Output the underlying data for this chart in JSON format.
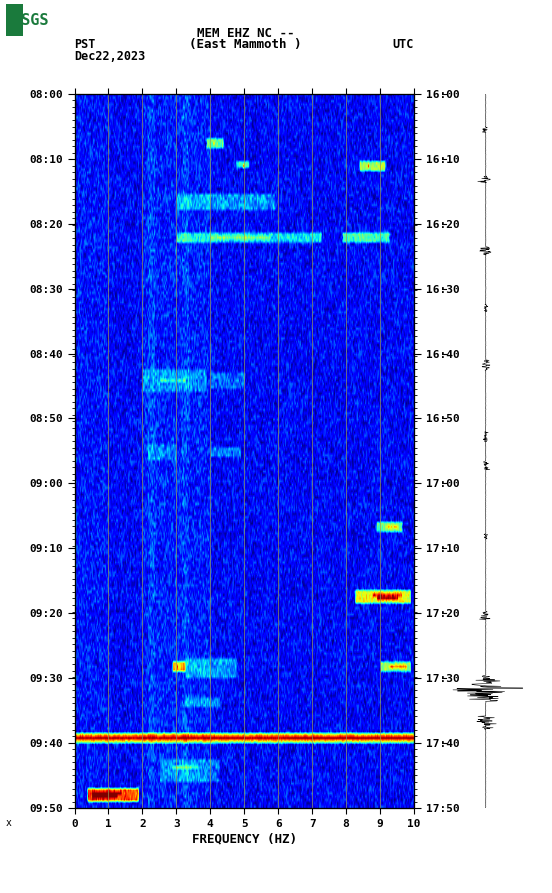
{
  "title_line1": "MEM EHZ NC --",
  "title_line2": "(East Mammoth )",
  "date_label": "Dec22,2023",
  "tz_left": "PST",
  "tz_right": "UTC",
  "freq_min": 0,
  "freq_max": 10,
  "freq_label": "FREQUENCY (HZ)",
  "freq_ticks": [
    0,
    1,
    2,
    3,
    4,
    5,
    6,
    7,
    8,
    9,
    10
  ],
  "time_ticks_left": [
    "08:00",
    "08:10",
    "08:20",
    "08:30",
    "08:40",
    "08:50",
    "09:00",
    "09:10",
    "09:20",
    "09:30",
    "09:40",
    "09:50"
  ],
  "time_ticks_right": [
    "16:00",
    "16:10",
    "16:20",
    "16:30",
    "16:40",
    "16:50",
    "17:00",
    "17:10",
    "17:20",
    "17:30",
    "17:40",
    "17:50"
  ],
  "grid_line_color": "#999955",
  "fig_bg": "#ffffff",
  "colormap": "jet",
  "vmin": -2.0,
  "vmax": 3.0,
  "usgs_green": "#1a7a3c",
  "n_time": 220,
  "n_freq": 400,
  "seed": 42
}
